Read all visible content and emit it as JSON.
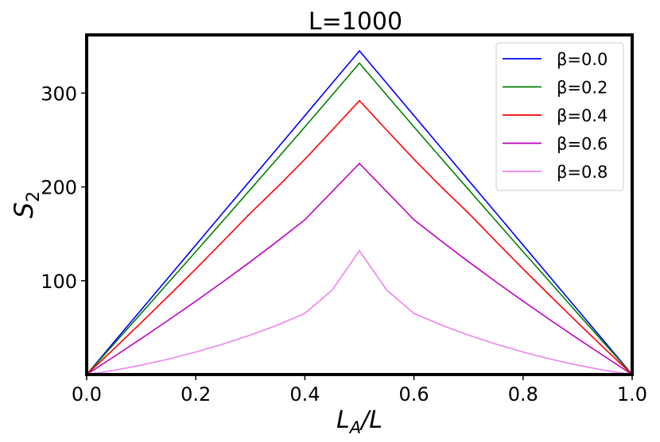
{
  "chart_data": {
    "type": "line",
    "title": "L=1000",
    "xlabel": {
      "base": "L",
      "sub": "A",
      "rest": "/L"
    },
    "ylabel": {
      "base": "S",
      "sub": "2"
    },
    "xlim": [
      0.0,
      1.0
    ],
    "ylim": [
      0,
      362
    ],
    "xticks": [
      0.0,
      0.2,
      0.4,
      0.6,
      0.8,
      1.0
    ],
    "xtick_labels": [
      "0.0",
      "0.2",
      "0.4",
      "0.6",
      "0.8",
      "1.0"
    ],
    "yticks": [
      100,
      200,
      300
    ],
    "ytick_labels": [
      "100",
      "200",
      "300"
    ],
    "grid": false,
    "legend_position": "top-right",
    "x": [
      0.0,
      0.05,
      0.1,
      0.15,
      0.2,
      0.25,
      0.3,
      0.35,
      0.4,
      0.45,
      0.5,
      0.55,
      0.6,
      0.65,
      0.7,
      0.75,
      0.8,
      0.85,
      0.9,
      0.95,
      1.0
    ],
    "series": [
      {
        "name": "β=0.0",
        "color": "#0000ff",
        "values": [
          0,
          34.5,
          69,
          103.5,
          138,
          172.5,
          207,
          241.5,
          276,
          310.5,
          345,
          310.5,
          276,
          241.5,
          207,
          172.5,
          138,
          103.5,
          69,
          34.5,
          0
        ]
      },
      {
        "name": "β=0.2",
        "color": "#008000",
        "values": [
          0,
          32.6,
          65.3,
          98.1,
          131,
          164,
          197.2,
          230.5,
          264,
          297.8,
          332,
          297.8,
          264,
          230.5,
          197.2,
          164,
          131,
          98.1,
          65.3,
          32.6,
          0
        ]
      },
      {
        "name": "β=0.4",
        "color": "#ff0000",
        "values": [
          0,
          27.4,
          55.3,
          83.7,
          112.6,
          142,
          172,
          200,
          229.5,
          260.5,
          292,
          260.5,
          229.5,
          200,
          172,
          142,
          112.6,
          83.7,
          55.3,
          27.4,
          0
        ]
      },
      {
        "name": "β=0.6",
        "color": "#c000c0",
        "values": [
          0,
          19,
          38.3,
          58,
          78.2,
          99,
          120.3,
          142.3,
          165,
          195,
          225,
          195,
          165,
          142.3,
          120.3,
          99,
          78.2,
          58,
          38.3,
          19,
          0
        ]
      },
      {
        "name": "β=0.8",
        "color": "#ee82ee",
        "values": [
          0,
          4.5,
          10,
          16.5,
          24,
          32.5,
          42,
          52.8,
          65.2,
          90,
          132,
          90,
          65.2,
          52.8,
          42,
          32.5,
          24,
          16.5,
          10,
          4.5,
          0
        ]
      }
    ]
  }
}
